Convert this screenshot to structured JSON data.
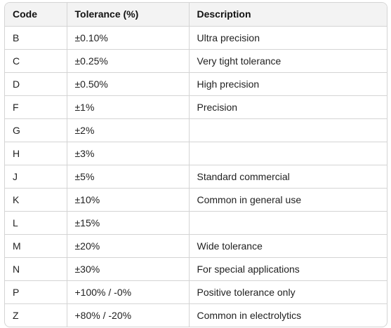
{
  "table": {
    "headers": [
      "Code",
      "Tolerance (%)",
      "Description"
    ],
    "rows": [
      [
        "B",
        "±0.10%",
        "Ultra precision"
      ],
      [
        "C",
        "±0.25%",
        "Very tight tolerance"
      ],
      [
        "D",
        "±0.50%",
        "High precision"
      ],
      [
        "F",
        "±1%",
        "Precision"
      ],
      [
        "G",
        "±2%",
        ""
      ],
      [
        "H",
        "±3%",
        ""
      ],
      [
        "J",
        "±5%",
        "Standard commercial"
      ],
      [
        "K",
        "±10%",
        "Common in general use"
      ],
      [
        "L",
        "±15%",
        ""
      ],
      [
        "M",
        "±20%",
        "Wide tolerance"
      ],
      [
        "N",
        "±30%",
        "For special applications"
      ],
      [
        "P",
        "+100% / -0%",
        "Positive tolerance only"
      ],
      [
        "Z",
        "+80% / -20%",
        "Common in electrolytics"
      ]
    ]
  }
}
